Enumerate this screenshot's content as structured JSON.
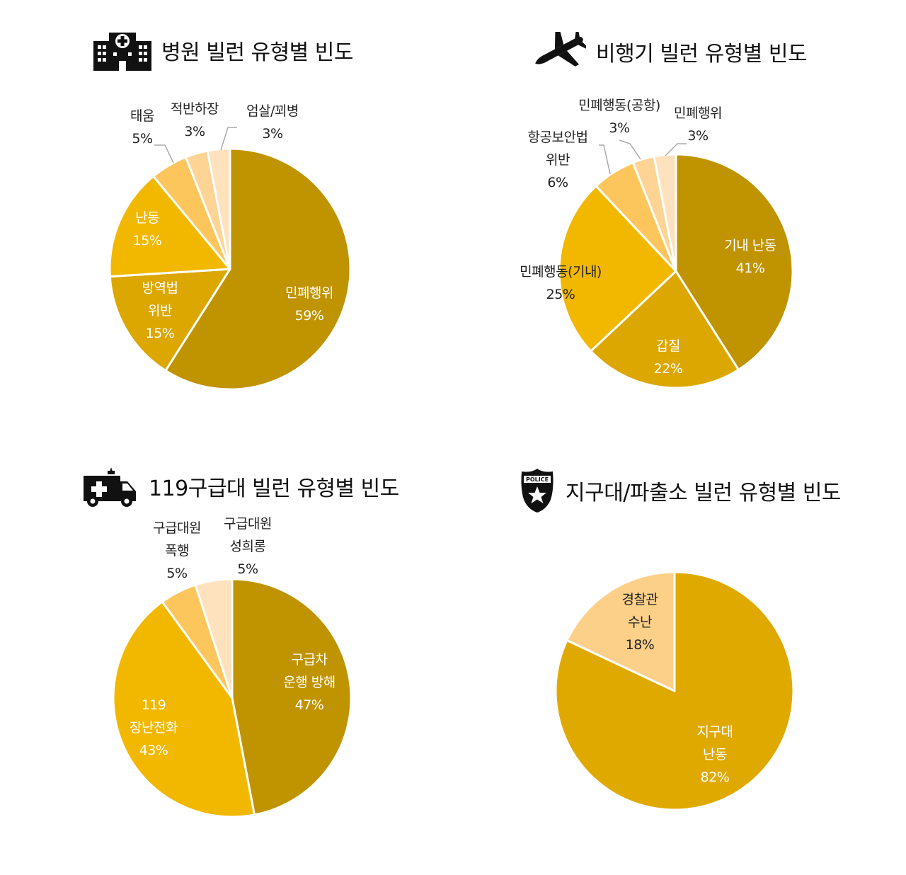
{
  "chart_data": [
    {
      "type": "pie",
      "title": "병원 빌런 유형별 빈도",
      "icon": "hospital-icon",
      "slices": [
        {
          "label": "민폐행위",
          "value": 59,
          "text": "59%",
          "color": "#c09300"
        },
        {
          "label": "방역법 위반",
          "value": 15,
          "text": "15%",
          "color": "#dba700"
        },
        {
          "label": "난동",
          "value": 15,
          "text": "15%",
          "color": "#f2b800"
        },
        {
          "label": "태움",
          "value": 5,
          "text": "5%",
          "color": "#fcc65c"
        },
        {
          "label": "적반하장",
          "value": 3,
          "text": "3%",
          "color": "#fdd493"
        },
        {
          "label": "엄살/꾀병",
          "value": 3,
          "text": "3%",
          "color": "#fde2bd"
        }
      ]
    },
    {
      "type": "pie",
      "title": "비행기 빌런 유형별 빈도",
      "icon": "airplane-icon",
      "slices": [
        {
          "label": "기내 난동",
          "value": 41,
          "text": "41%",
          "color": "#c09300"
        },
        {
          "label": "갑질",
          "value": 22,
          "text": "22%",
          "color": "#dba700"
        },
        {
          "label": "민폐행동(기내)",
          "value": 25,
          "text": "25%",
          "color": "#f2b800"
        },
        {
          "label": "항공보안법 위반",
          "value": 6,
          "text": "6%",
          "color": "#fcc65c"
        },
        {
          "label": "민폐행동(공항)",
          "value": 3,
          "text": "3%",
          "color": "#fdd493"
        },
        {
          "label": "민폐행위",
          "value": 3,
          "text": "3%",
          "color": "#fde2bd"
        }
      ]
    },
    {
      "type": "pie",
      "title": "119구급대 빌런 유형별 빈도",
      "icon": "ambulance-icon",
      "slices": [
        {
          "label": "구급차 운행 방해",
          "value": 47,
          "text": "47%",
          "color": "#c09300"
        },
        {
          "label": "119 장난전화",
          "value": 43,
          "text": "43%",
          "color": "#f2b800"
        },
        {
          "label": "구급대원 폭행",
          "value": 5,
          "text": "5%",
          "color": "#fcc65c"
        },
        {
          "label": "구급대원 성희롱",
          "value": 5,
          "text": "5%",
          "color": "#fde2bd"
        }
      ]
    },
    {
      "type": "pie",
      "title": "지구대/파출소 빌런 유형별 빈도",
      "icon": "police-badge-icon",
      "slices": [
        {
          "label": "지구대 난동",
          "value": 82,
          "text": "82%",
          "color": "#e0a900"
        },
        {
          "label": "경찰관 수난",
          "value": 18,
          "text": "18%",
          "color": "#fdd08a"
        }
      ]
    }
  ]
}
